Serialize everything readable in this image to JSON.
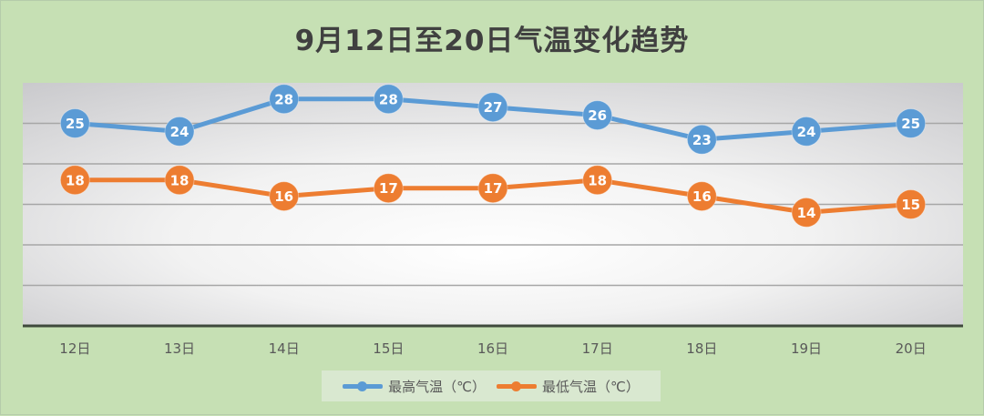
{
  "chart_data": {
    "type": "line",
    "title": "9月12日至20日气温变化趋势",
    "xlabel": "",
    "ylabel": "",
    "categories": [
      "12日",
      "13日",
      "14日",
      "15日",
      "16日",
      "17日",
      "18日",
      "19日",
      "20日"
    ],
    "series": [
      {
        "name": "最高气温（℃）",
        "color": "#5b9bd5",
        "values": [
          25,
          24,
          28,
          28,
          27,
          26,
          23,
          24,
          25
        ]
      },
      {
        "name": "最低气温（℃）",
        "color": "#ed7d31",
        "values": [
          18,
          18,
          16,
          17,
          17,
          18,
          16,
          14,
          15
        ]
      }
    ],
    "ylim": [
      0,
      30
    ],
    "y_major_step": 5,
    "y_axis_labels_visible": false,
    "grid": true,
    "data_labels": true,
    "legend_position": "bottom"
  },
  "colors": {
    "background": "#c6e0b4",
    "title_text": "#404040",
    "axis_text": "#595959"
  }
}
